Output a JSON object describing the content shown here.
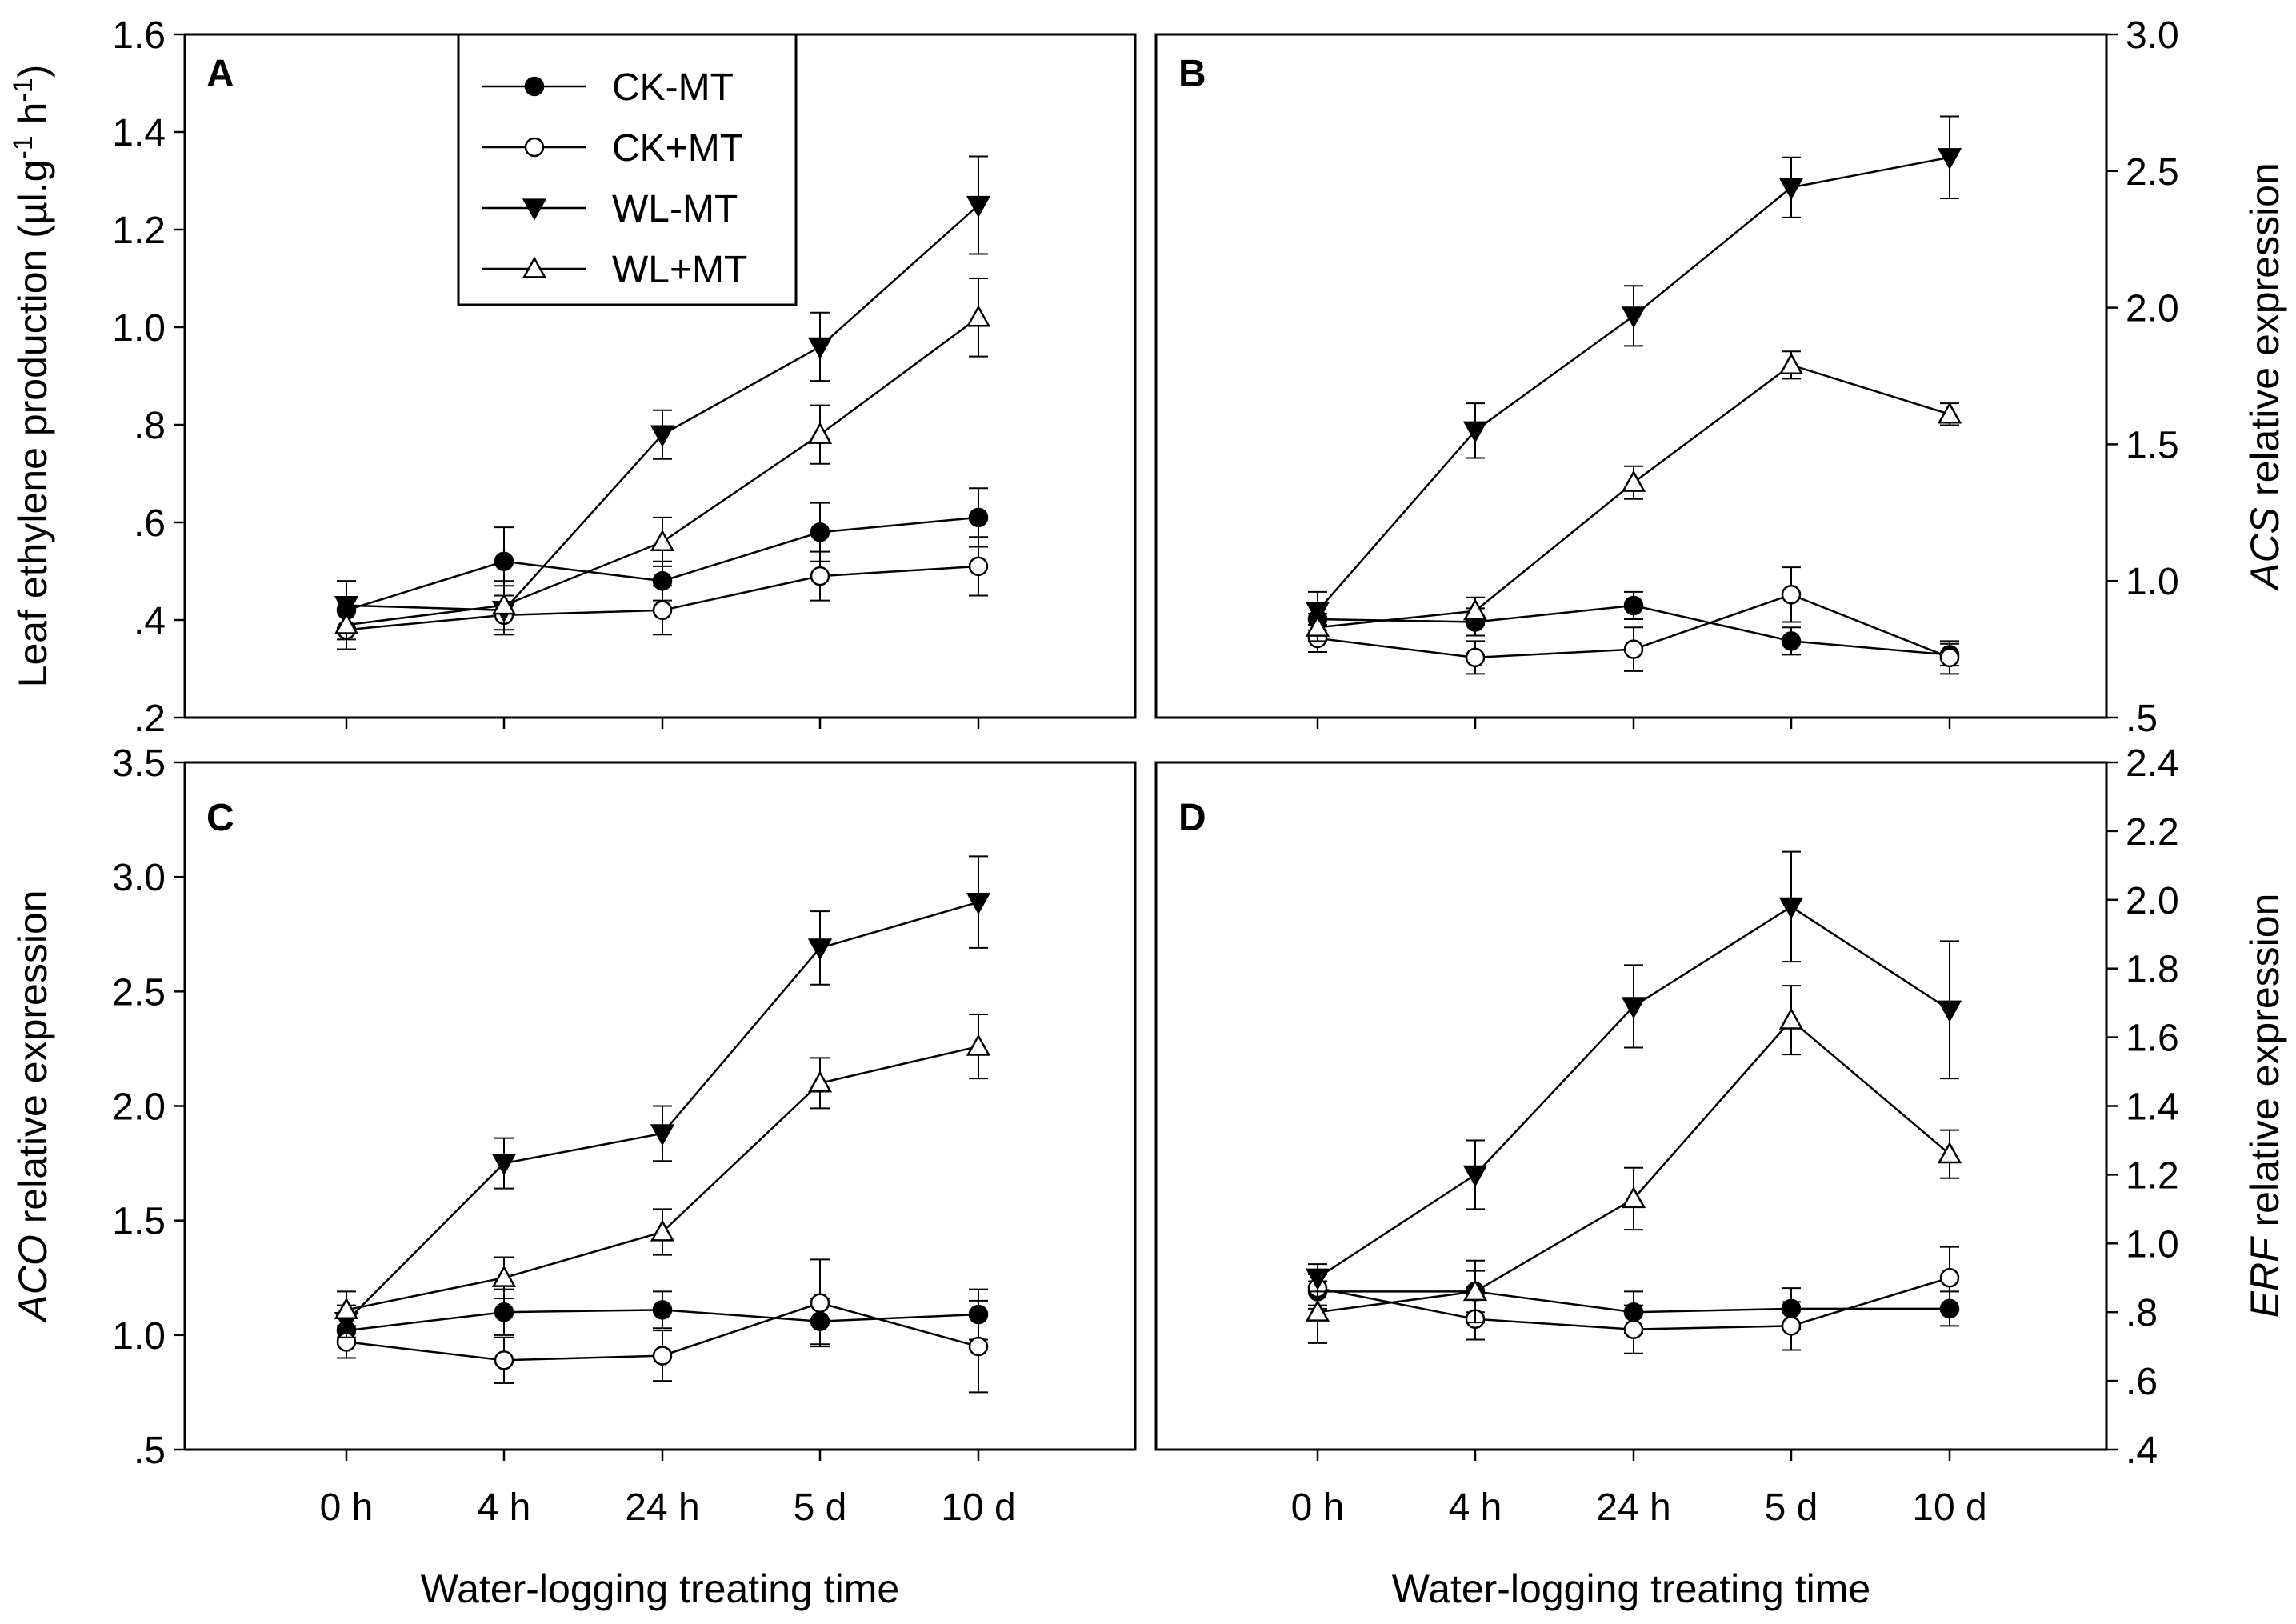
{
  "figure": {
    "legend": [
      {
        "name": "CK-MT",
        "marker": "circle",
        "fill": "#000000"
      },
      {
        "name": "CK+MT",
        "marker": "circle",
        "fill": "#ffffff"
      },
      {
        "name": "WL-MT",
        "marker": "triangle-down",
        "fill": "#000000"
      },
      {
        "name": "WL+MT",
        "marker": "triangle-up",
        "fill": "#ffffff"
      }
    ],
    "xlabel_left": "Water-logging treating time",
    "xlabel_right": "Water-logging treating time",
    "categories": [
      "0 h",
      "4 h",
      "24 h",
      "5 d",
      "10 d"
    ]
  },
  "chart_data": [
    {
      "panel": "A",
      "type": "line",
      "ylabel": "Leaf ethylene production (µl.g⁻¹ h⁻¹)",
      "ylabel_parts": {
        "prefix": "Leaf ethylene production (µl.g",
        "sup1": "-1",
        "mid": " h",
        "sup2": "-1",
        "suffix": ")"
      },
      "yaxis_side": "left",
      "ylim": [
        0.2,
        1.6
      ],
      "yticks": [
        0.2,
        0.4,
        0.6,
        0.8,
        1.0,
        1.2,
        1.4,
        1.6
      ],
      "ytick_labels": [
        ".2",
        ".4",
        ".6",
        ".8",
        "1.0",
        "1.2",
        "1.4",
        "1.6"
      ],
      "categories": [
        "0 h",
        "4 h",
        "24 h",
        "5 d",
        "10 d"
      ],
      "series": [
        {
          "name": "CK-MT",
          "values": [
            0.42,
            0.52,
            0.48,
            0.58,
            0.61
          ],
          "errors": [
            0.06,
            0.07,
            0.04,
            0.06,
            0.06
          ]
        },
        {
          "name": "CK+MT",
          "values": [
            0.38,
            0.41,
            0.42,
            0.49,
            0.51
          ],
          "errors": [
            0.04,
            0.04,
            0.05,
            0.05,
            0.06
          ]
        },
        {
          "name": "WL-MT",
          "values": [
            0.43,
            0.42,
            0.78,
            0.96,
            1.25
          ],
          "errors": [
            0.05,
            0.05,
            0.05,
            0.07,
            0.1
          ]
        },
        {
          "name": "WL+MT",
          "values": [
            0.39,
            0.43,
            0.56,
            0.78,
            1.02
          ],
          "errors": [
            0.05,
            0.05,
            0.05,
            0.06,
            0.08
          ]
        }
      ]
    },
    {
      "panel": "B",
      "type": "line",
      "ylabel": "ACS relative expression",
      "ylabel_parts": {
        "italic": "ACS",
        "rest": " relative expression"
      },
      "yaxis_side": "right",
      "ylim": [
        0.5,
        3.0
      ],
      "yticks": [
        0.5,
        1.0,
        1.5,
        2.0,
        2.5,
        3.0
      ],
      "ytick_labels": [
        ".5",
        "1.0",
        "1.5",
        "2.0",
        "2.5",
        "3.0"
      ],
      "categories": [
        "0 h",
        "4 h",
        "24 h",
        "5 d",
        "10 d"
      ],
      "series": [
        {
          "name": "CK-MT",
          "values": [
            0.86,
            0.85,
            0.91,
            0.78,
            0.73
          ],
          "errors": [
            0.05,
            0.05,
            0.05,
            0.05,
            0.04
          ]
        },
        {
          "name": "CK+MT",
          "values": [
            0.79,
            0.72,
            0.75,
            0.95,
            0.72
          ],
          "errors": [
            0.05,
            0.06,
            0.08,
            0.1,
            0.06
          ]
        },
        {
          "name": "WL-MT",
          "values": [
            0.89,
            1.55,
            1.97,
            2.44,
            2.55
          ],
          "errors": [
            0.07,
            0.1,
            0.11,
            0.11,
            0.15
          ]
        },
        {
          "name": "WL+MT",
          "values": [
            0.83,
            0.89,
            1.36,
            1.79,
            1.61
          ],
          "errors": [
            0.05,
            0.05,
            0.06,
            0.05,
            0.04
          ]
        }
      ]
    },
    {
      "panel": "C",
      "type": "line",
      "ylabel": "ACO relative expression",
      "ylabel_parts": {
        "italic": "ACO",
        "rest": " relative expression"
      },
      "yaxis_side": "left",
      "ylim": [
        0.5,
        3.5
      ],
      "yticks": [
        0.5,
        1.0,
        1.5,
        2.0,
        2.5,
        3.0,
        3.5
      ],
      "ytick_labels": [
        ".5",
        "1.0",
        "1.5",
        "2.0",
        "2.5",
        "3.0",
        "3.5"
      ],
      "categories": [
        "0 h",
        "4 h",
        "24 h",
        "5 d",
        "10 d"
      ],
      "series": [
        {
          "name": "CK-MT",
          "values": [
            1.02,
            1.1,
            1.11,
            1.06,
            1.09
          ],
          "errors": [
            0.06,
            0.1,
            0.08,
            0.1,
            0.11
          ]
        },
        {
          "name": "CK+MT",
          "values": [
            0.97,
            0.89,
            0.91,
            1.14,
            0.95
          ],
          "errors": [
            0.07,
            0.1,
            0.11,
            0.19,
            0.2
          ]
        },
        {
          "name": "WL-MT",
          "values": [
            1.06,
            1.75,
            1.88,
            2.69,
            2.89
          ],
          "errors": [
            0.07,
            0.11,
            0.12,
            0.16,
            0.2
          ]
        },
        {
          "name": "WL+MT",
          "values": [
            1.11,
            1.25,
            1.45,
            2.1,
            2.26
          ],
          "errors": [
            0.08,
            0.09,
            0.1,
            0.11,
            0.14
          ]
        }
      ]
    },
    {
      "panel": "D",
      "type": "line",
      "ylabel": "ERF relative expression",
      "ylabel_parts": {
        "italic": "ERF",
        "rest": " relative expression"
      },
      "yaxis_side": "right",
      "ylim": [
        0.4,
        2.4
      ],
      "yticks": [
        0.4,
        0.6,
        0.8,
        1.0,
        1.2,
        1.4,
        1.6,
        1.8,
        2.0,
        2.2,
        2.4
      ],
      "ytick_labels": [
        ".4",
        ".6",
        ".8",
        "1.0",
        "1.2",
        "1.4",
        "1.6",
        "1.8",
        "2.0",
        "2.2",
        "2.4"
      ],
      "categories": [
        "0 h",
        "4 h",
        "24 h",
        "5 d",
        "10 d"
      ],
      "series": [
        {
          "name": "CK-MT",
          "values": [
            0.86,
            0.86,
            0.8,
            0.81,
            0.81
          ],
          "errors": [
            0.05,
            0.06,
            0.06,
            0.06,
            0.05
          ]
        },
        {
          "name": "CK+MT",
          "values": [
            0.87,
            0.78,
            0.75,
            0.76,
            0.9
          ],
          "errors": [
            0.05,
            0.06,
            0.07,
            0.07,
            0.09
          ]
        },
        {
          "name": "WL-MT",
          "values": [
            0.9,
            1.2,
            1.69,
            1.98,
            1.68
          ],
          "errors": [
            0.04,
            0.1,
            0.12,
            0.16,
            0.2
          ]
        },
        {
          "name": "WL+MT",
          "values": [
            0.8,
            0.86,
            1.13,
            1.65,
            1.26
          ],
          "errors": [
            0.09,
            0.09,
            0.09,
            0.1,
            0.07
          ]
        }
      ]
    }
  ]
}
